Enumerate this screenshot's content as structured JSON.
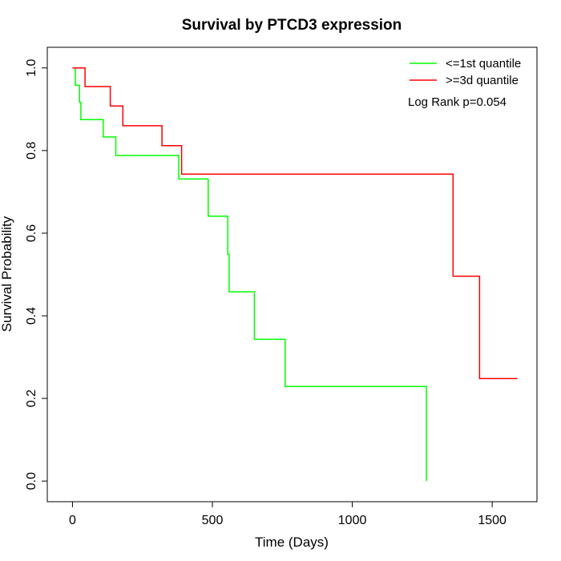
{
  "chart_data": {
    "type": "line",
    "title": "Survival by PTCD3 expression",
    "xlabel": "Time (Days)",
    "ylabel": "Survival Probability",
    "xlim": [
      -90,
      1660
    ],
    "ylim": [
      -0.05,
      1.05
    ],
    "x_ticks": [
      0,
      500,
      1000,
      1500
    ],
    "x_tick_labels": [
      "0",
      "500",
      "1000",
      "1500"
    ],
    "y_ticks": [
      0.0,
      0.2,
      0.4,
      0.6,
      0.8,
      1.0
    ],
    "y_tick_labels": [
      "0.0",
      "0.2",
      "0.4",
      "0.6",
      "0.8",
      "1.0"
    ],
    "legend_position": "top-right",
    "annotation": "Log Rank p=0.054",
    "series": [
      {
        "name": "<=1st quantile",
        "color": "#00ff00",
        "step_points": [
          [
            0,
            1.0
          ],
          [
            10,
            1.0
          ],
          [
            10,
            0.958
          ],
          [
            25,
            0.958
          ],
          [
            25,
            0.917
          ],
          [
            30,
            0.917
          ],
          [
            30,
            0.875
          ],
          [
            110,
            0.875
          ],
          [
            110,
            0.833
          ],
          [
            155,
            0.833
          ],
          [
            155,
            0.788
          ],
          [
            380,
            0.788
          ],
          [
            380,
            0.731
          ],
          [
            485,
            0.731
          ],
          [
            485,
            0.641
          ],
          [
            555,
            0.641
          ],
          [
            555,
            0.549
          ],
          [
            560,
            0.549
          ],
          [
            560,
            0.458
          ],
          [
            650,
            0.458
          ],
          [
            650,
            0.343
          ],
          [
            760,
            0.343
          ],
          [
            760,
            0.229
          ],
          [
            1265,
            0.229
          ],
          [
            1265,
            0.0
          ]
        ]
      },
      {
        "name": ">=3d quantile",
        "color": "#ff0000",
        "step_points": [
          [
            0,
            1.0
          ],
          [
            45,
            1.0
          ],
          [
            45,
            0.955
          ],
          [
            135,
            0.955
          ],
          [
            135,
            0.908
          ],
          [
            180,
            0.908
          ],
          [
            180,
            0.86
          ],
          [
            320,
            0.86
          ],
          [
            320,
            0.812
          ],
          [
            390,
            0.812
          ],
          [
            390,
            0.743
          ],
          [
            1360,
            0.743
          ],
          [
            1360,
            0.496
          ],
          [
            1455,
            0.496
          ],
          [
            1455,
            0.248
          ],
          [
            1590,
            0.248
          ]
        ]
      }
    ]
  }
}
